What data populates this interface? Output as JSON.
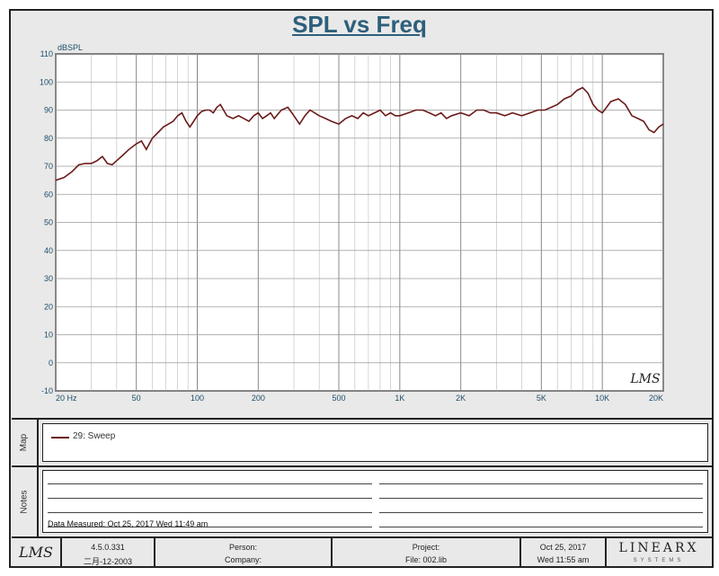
{
  "chart_data": {
    "type": "line",
    "title": "SPL vs Freq",
    "ylabel": "dBSPL",
    "xscale": "log",
    "xlim": [
      20,
      20000
    ],
    "ylim": [
      -10,
      110
    ],
    "grid": true,
    "x_tick_labels": [
      "20 Hz",
      "50",
      "100",
      "200",
      "500",
      "1K",
      "2K",
      "5K",
      "10K",
      "20K"
    ],
    "y_tick_labels": [
      "110",
      "100",
      "90",
      "80",
      "70",
      "60",
      "50",
      "40",
      "30",
      "20",
      "10",
      "0",
      "-10"
    ],
    "series": [
      {
        "name": "29: Sweep",
        "color": "#6b1a1a",
        "x": [
          20,
          22,
          24,
          26,
          28,
          30,
          32,
          34,
          36,
          38,
          40,
          43,
          46,
          50,
          53,
          56,
          60,
          64,
          68,
          72,
          76,
          80,
          84,
          88,
          92,
          96,
          100,
          105,
          110,
          115,
          120,
          125,
          130,
          140,
          150,
          160,
          170,
          180,
          190,
          200,
          210,
          220,
          230,
          240,
          260,
          280,
          300,
          320,
          340,
          360,
          380,
          400,
          430,
          460,
          500,
          540,
          580,
          620,
          660,
          700,
          750,
          800,
          850,
          900,
          950,
          1000,
          1100,
          1200,
          1300,
          1400,
          1500,
          1600,
          1700,
          1800,
          2000,
          2200,
          2400,
          2600,
          2800,
          3000,
          3300,
          3600,
          4000,
          4400,
          4800,
          5200,
          5600,
          6000,
          6500,
          7000,
          7500,
          8000,
          8500,
          9000,
          9500,
          10000,
          10500,
          11000,
          12000,
          13000,
          14000,
          15000,
          16000,
          17000,
          18000,
          19000,
          20000
        ],
        "y": [
          65,
          66,
          68,
          70.5,
          71,
          71,
          72,
          73.5,
          71,
          70.5,
          72,
          74,
          76,
          78,
          79,
          76,
          80,
          82,
          84,
          85,
          86,
          88,
          89,
          86,
          84,
          86,
          88,
          89.5,
          90,
          90,
          89,
          91,
          92,
          88,
          87,
          88,
          87,
          86,
          88,
          89,
          87,
          88,
          89,
          87,
          90,
          91,
          88,
          85,
          88,
          90,
          89,
          88,
          87,
          86,
          85,
          87,
          88,
          87,
          89,
          88,
          89,
          90,
          88,
          89,
          88,
          88,
          89,
          90,
          90,
          89,
          88,
          89,
          87,
          88,
          89,
          88,
          90,
          90,
          89,
          89,
          88,
          89,
          88,
          89,
          90,
          90,
          91,
          92,
          94,
          95,
          97,
          98,
          96,
          92,
          90,
          89,
          91,
          93,
          94,
          92,
          88,
          87,
          86,
          83,
          82,
          84,
          85
        ]
      }
    ]
  },
  "panels": {
    "map_label": "Map",
    "notes_label": "Notes",
    "data_measured": "Data Measured: Oct 25, 2017  Wed 11:49 am"
  },
  "watermark": "LMS",
  "footer": {
    "logo": "LMS",
    "version": "4.5.0.331",
    "build_date": "二月-12-2003",
    "person_label": "Person:",
    "company_label": "Company:",
    "project_label": "Project:",
    "file_label": "File: 002.lib",
    "date": "Oct 25, 2017",
    "time": "Wed 11:55 am",
    "brand": "LINEARX",
    "brand_sub": "SYSTEMS"
  }
}
